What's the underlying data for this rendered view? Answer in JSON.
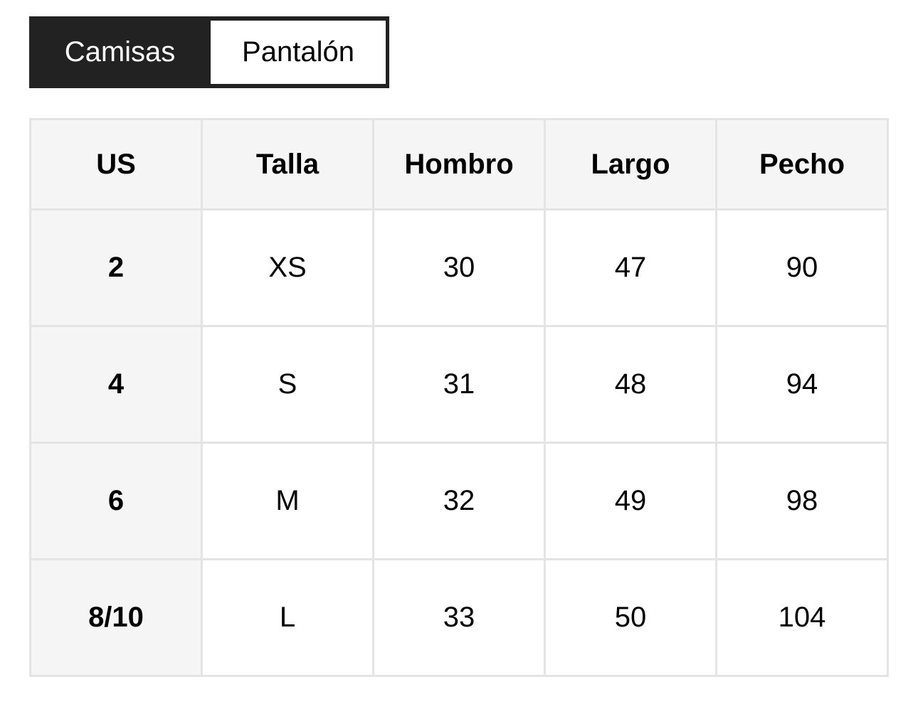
{
  "tabs": [
    {
      "label": "Camisas",
      "active": false
    },
    {
      "label": "Pantalón",
      "active": true
    }
  ],
  "colors": {
    "tab_bar": "#222222",
    "header_bg": "#f5f5f5",
    "border": "#e4e4e4"
  },
  "table": {
    "headers": [
      "US",
      "Talla",
      "Hombro",
      "Largo",
      "Pecho"
    ],
    "rows": [
      [
        "2",
        "XS",
        "30",
        "47",
        "90"
      ],
      [
        "4",
        "S",
        "31",
        "48",
        "94"
      ],
      [
        "6",
        "M",
        "32",
        "49",
        "98"
      ],
      [
        "8/10",
        "L",
        "33",
        "50",
        "104"
      ]
    ]
  }
}
